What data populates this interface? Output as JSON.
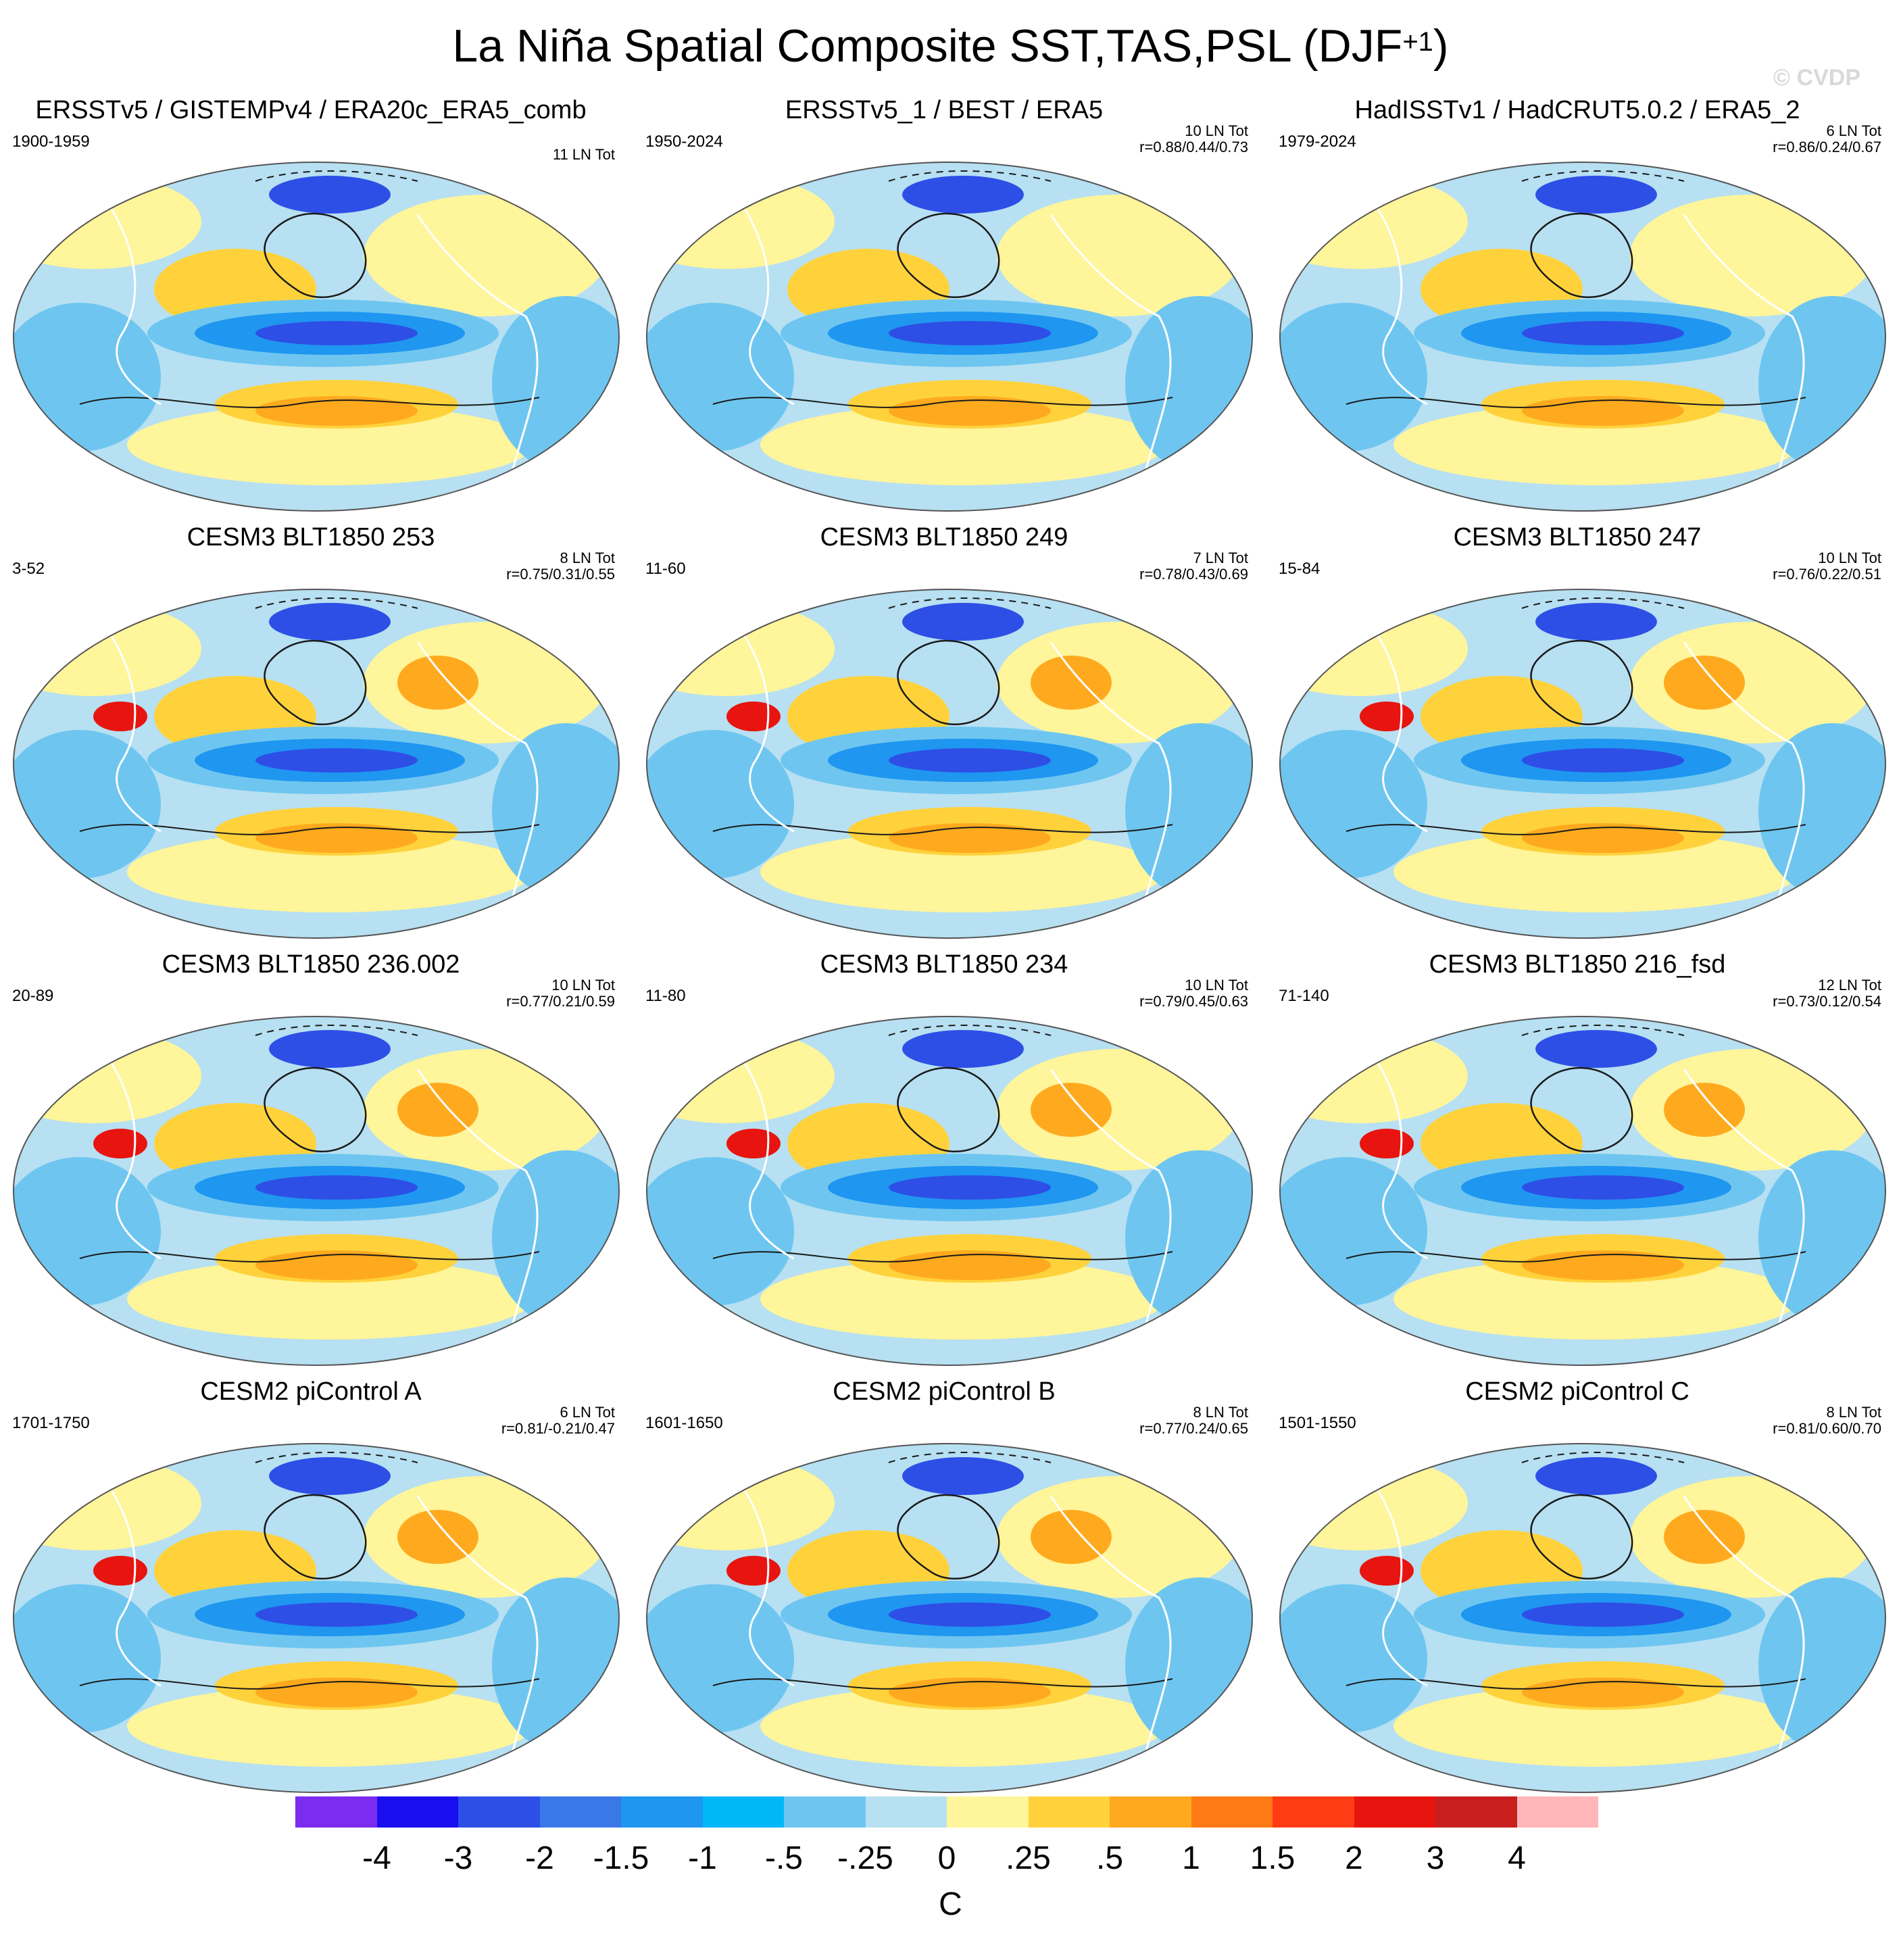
{
  "title": "La Niña Spatial Composite SST,TAS,PSL (DJF",
  "title_superscript": "+1",
  "title_close": ")",
  "watermark": "© CVDP",
  "panels": [
    {
      "title": "ERSSTv5 / GISTEMPv4 / ERA20c_ERA5_comb",
      "period": "1900-1959",
      "count": "11 LN Tot",
      "corr": ""
    },
    {
      "title": "ERSSTv5_1 / BEST / ERA5",
      "period": "1950-2024",
      "count": "10 LN Tot",
      "corr": "r=0.88/0.44/0.73"
    },
    {
      "title": "HadISSTv1 / HadCRUT5.0.2 / ERA5_2",
      "period": "1979-2024",
      "count": "6 LN Tot",
      "corr": "r=0.86/0.24/0.67"
    },
    {
      "title": "CESM3 BLT1850 253",
      "period": "3-52",
      "count": "8 LN Tot",
      "corr": "r=0.75/0.31/0.55"
    },
    {
      "title": "CESM3 BLT1850 249",
      "period": "11-60",
      "count": "7 LN Tot",
      "corr": "r=0.78/0.43/0.69"
    },
    {
      "title": "CESM3 BLT1850 247",
      "period": "15-84",
      "count": "10 LN Tot",
      "corr": "r=0.76/0.22/0.51"
    },
    {
      "title": "CESM3 BLT1850 236.002",
      "period": "20-89",
      "count": "10 LN Tot",
      "corr": "r=0.77/0.21/0.59"
    },
    {
      "title": "CESM3 BLT1850 234",
      "period": "11-80",
      "count": "10 LN Tot",
      "corr": "r=0.79/0.45/0.63"
    },
    {
      "title": "CESM3 BLT1850 216_fsd",
      "period": "71-140",
      "count": "12 LN Tot",
      "corr": "r=0.73/0.12/0.54"
    },
    {
      "title": "CESM2 piControl A",
      "period": "1701-1750",
      "count": "6 LN Tot",
      "corr": "r=0.81/-0.21/0.47"
    },
    {
      "title": "CESM2 piControl B",
      "period": "1601-1650",
      "count": "8 LN Tot",
      "corr": "r=0.77/0.24/0.65"
    },
    {
      "title": "CESM2 piControl C",
      "period": "1501-1550",
      "count": "8 LN Tot",
      "corr": "r=0.81/0.60/0.70"
    }
  ],
  "colorbar": {
    "colors": [
      "#7b2cf0",
      "#1a0ff0",
      "#2d4fe6",
      "#3a78e8",
      "#1f96f0",
      "#00b8f5",
      "#6ec6f0",
      "#b7e0f2",
      "#fff59a",
      "#ffd23c",
      "#ffaa1e",
      "#ff7a14",
      "#ff3c14",
      "#e8140f",
      "#c81e1e",
      "#ffb6b9"
    ],
    "tick_labels": [
      "-4",
      "-3",
      "-2",
      "-1.5",
      "-1",
      "-.5",
      "-.25",
      "0",
      ".25",
      ".5",
      "1",
      "1.5",
      "2",
      "3",
      "4"
    ],
    "unit": "C"
  },
  "style": {
    "cold_strong": "#2d4fe6",
    "cold": "#1f96f0",
    "cool": "#6ec6f0",
    "neutral_cool": "#b7e0f2",
    "neutral_warm": "#fff59a",
    "warm": "#ffd23c",
    "hot": "#ffaa1e",
    "very_hot": "#e8140f",
    "land_outline": "#ffffff",
    "contour": "#1a1a1a"
  }
}
